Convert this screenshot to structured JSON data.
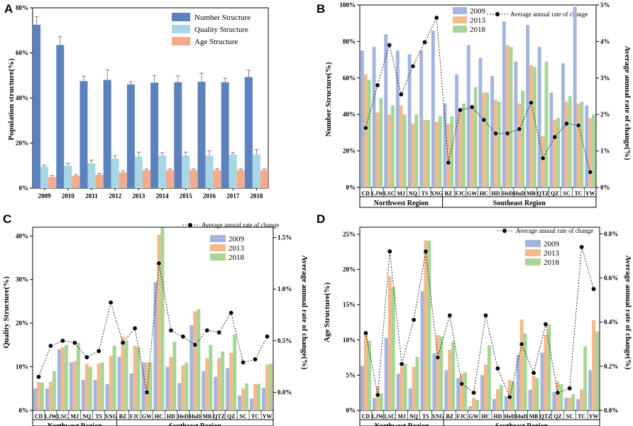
{
  "panel_letters": [
    "A",
    "B",
    "C",
    "D"
  ],
  "colors": {
    "s2009": "#a3b5df",
    "s2013": "#f2b98a",
    "s2018": "#a7d596",
    "numA": "#5b82bd",
    "qualA": "#a9d6e5",
    "ageA": "#f5ab8a",
    "rate": "#000000"
  },
  "regions": {
    "northwest": "Northwest Region",
    "southeast": "Southeast Region"
  },
  "chart_data": [
    {
      "panel": "A",
      "type": "bar",
      "ylabel": "Population structure(%)",
      "ylim": [
        0,
        80
      ],
      "yticks": [
        "0%",
        "20%",
        "40%",
        "60%",
        "80%"
      ],
      "categories": [
        "2009",
        "2010",
        "2011",
        "2012",
        "2013",
        "2014",
        "2015",
        "2016",
        "2017",
        "2018"
      ],
      "series": [
        {
          "name": "Number Structure",
          "values": [
            72.5,
            63.5,
            47.5,
            48,
            46,
            46.8,
            47,
            47.2,
            47,
            49.3
          ],
          "err": [
            3.5,
            3.8,
            2.2,
            4.5,
            1.2,
            3.2,
            2.8,
            3.8,
            1.8,
            3
          ]
        },
        {
          "name": "Quality Structure",
          "values": [
            9.6,
            10,
            11,
            13,
            14,
            14.5,
            14.5,
            14.5,
            15,
            15
          ],
          "err": [
            0.6,
            1,
            1.5,
            1.3,
            2,
            1.2,
            1.5,
            2,
            0.8,
            2.2
          ]
        },
        {
          "name": "Age Structure",
          "values": [
            5,
            5.5,
            6,
            7,
            8,
            8,
            8,
            8,
            8,
            8
          ],
          "err": [
            0.6,
            0.5,
            0.5,
            0.6,
            0.5,
            0.5,
            0.5,
            0.6,
            0.5,
            0.5
          ]
        }
      ]
    },
    {
      "panel": "B",
      "type": "bar+line",
      "ylabel": "Number Structure(%)",
      "y2label": "Average annual rate of change(%)",
      "ylim": [
        0,
        100
      ],
      "y2lim": [
        0,
        5
      ],
      "yticks": [
        "0%",
        "20%",
        "40%",
        "60%",
        "80%",
        "100%"
      ],
      "y2ticks": [
        "0%",
        "1%",
        "2%",
        "3%",
        "4%",
        "5%"
      ],
      "categories": [
        "CD",
        "LJW",
        "LSC",
        "MJ",
        "NQ",
        "TS",
        "XNG",
        "BZ",
        "FJC",
        "GW",
        "HC",
        "HD",
        "HeD",
        "HuD",
        "MB",
        "QTZ",
        "QZ",
        "SC",
        "TC",
        "YW"
      ],
      "series": [
        {
          "name": "2009",
          "values": [
            75,
            77,
            84,
            75,
            73,
            75,
            86,
            46,
            62,
            78,
            71,
            61,
            91,
            69,
            89,
            77,
            52,
            68,
            99,
            45
          ]
        },
        {
          "name": "2013",
          "values": [
            62,
            41,
            40,
            45,
            35,
            37,
            36,
            35,
            43,
            45,
            52,
            48,
            78,
            46,
            67,
            28,
            37,
            47,
            46,
            38
          ]
        },
        {
          "name": "2018",
          "values": [
            59,
            49,
            45,
            40,
            40,
            37,
            39,
            39,
            46,
            55,
            52,
            47,
            77,
            53,
            66,
            69,
            38,
            50,
            47,
            40
          ]
        }
      ],
      "rate": {
        "name": "Average annual rate of change",
        "values": [
          1.63,
          2.8,
          3.9,
          2.55,
          3.32,
          3.98,
          4.65,
          0.68,
          2.12,
          2.2,
          1.85,
          1.48,
          1.48,
          1.6,
          2.32,
          0.8,
          1.38,
          1.75,
          1.7,
          0.42
        ]
      }
    },
    {
      "panel": "C",
      "type": "bar+line",
      "ylabel": "Quality Structure(%)",
      "y2label": "Average annual rate of change(%)",
      "ylim": [
        0,
        42
      ],
      "y2lim": [
        -0.175,
        1.6
      ],
      "yticks": [
        "0%",
        "10%",
        "20%",
        "30%",
        "40%"
      ],
      "y2ticks": [
        "0.0%",
        "0.5%",
        "1.0%",
        "1.5%"
      ],
      "categories": [
        "CD",
        "LJW",
        "LSC",
        "MJ",
        "NQ",
        "TS",
        "XNG",
        "BZ",
        "FJC",
        "GW",
        "HC",
        "HD",
        "HeD",
        "HuD",
        "MB",
        "QTZ",
        "QZ",
        "SC",
        "TC",
        "YW"
      ],
      "series": [
        {
          "name": "2009",
          "values": [
            5,
            5,
            14,
            11,
            7,
            7,
            6,
            12.3,
            8.5,
            11,
            29.4,
            10,
            6.3,
            19.5,
            9,
            7.7,
            9.7,
            3.4,
            2.7,
            5.2
          ]
        },
        {
          "name": "2013",
          "values": [
            6.5,
            6.5,
            14.5,
            11.3,
            10.7,
            10.7,
            12.5,
            16.9,
            14.8,
            11,
            40.2,
            12.2,
            10.3,
            22.7,
            12,
            12,
            13.2,
            5,
            6,
            10.5
          ]
        },
        {
          "name": "2018",
          "values": [
            6.4,
            9,
            15,
            15.5,
            10,
            11,
            14.8,
            16,
            14.5,
            11,
            41.9,
            15.8,
            11,
            23.2,
            15,
            13.5,
            17.4,
            6.2,
            6.1,
            10.7
          ]
        }
      ],
      "rate": {
        "name": "Average annual rate of change",
        "values": [
          0.15,
          0.45,
          0.5,
          0.48,
          0.34,
          0.4,
          0.87,
          0.48,
          0.62,
          0.0,
          1.25,
          0.6,
          0.54,
          0.46,
          0.6,
          0.58,
          0.77,
          0.29,
          0.32,
          0.54
        ]
      }
    },
    {
      "panel": "D",
      "type": "bar+line",
      "ylabel": "Age Structure(%)",
      "y2label": "Average annual rate of change(%)",
      "ylim": [
        0,
        26
      ],
      "y2lim": [
        0,
        0.83
      ],
      "yticks": [
        "0%",
        "5%",
        "10%",
        "15%",
        "20%",
        "25%"
      ],
      "y2ticks": [
        "0.0%",
        "0.2%",
        "0.4%",
        "0.6%",
        "0.8%"
      ],
      "categories": [
        "CD",
        "LJW",
        "LSC",
        "MJ",
        "NQ",
        "TS",
        "XNG",
        "BZ",
        "FJC",
        "GW",
        "HC",
        "HD",
        "HeD",
        "HuD",
        "MB",
        "QTZ",
        "QZ",
        "SC",
        "TC",
        "YW"
      ],
      "series": [
        {
          "name": "2009",
          "values": [
            6.3,
            1.8,
            10.3,
            5.2,
            3.1,
            16.9,
            8.1,
            5.7,
            4.6,
            0.6,
            5,
            1.6,
            2,
            7.9,
            2.9,
            8.2,
            2.6,
            1.8,
            1.6,
            5.7
          ]
        },
        {
          "name": "2013",
          "values": [
            11,
            3.4,
            19,
            6.2,
            6.2,
            24.1,
            10.7,
            8.6,
            5.2,
            1.8,
            6.5,
            3,
            4.3,
            12.9,
            4.9,
            10.8,
            4.1,
            1.8,
            3,
            12.8
          ]
        },
        {
          "name": "2018",
          "values": [
            9.9,
            2.4,
            17.5,
            6.6,
            7.6,
            24.1,
            10.5,
            9.8,
            5.4,
            1.5,
            9.2,
            3.6,
            4.1,
            10.9,
            4.6,
            12.2,
            3.7,
            2.3,
            9.1,
            11.2
          ]
        }
      ],
      "rate": {
        "name": "Average annual rate of change",
        "values": [
          0.35,
          0.07,
          0.72,
          0.21,
          0.41,
          0.72,
          0.24,
          0.43,
          0.12,
          0.08,
          0.43,
          0.19,
          0.06,
          0.3,
          0.17,
          0.39,
          0.08,
          0.1,
          0.74,
          0.55
        ]
      }
    }
  ]
}
